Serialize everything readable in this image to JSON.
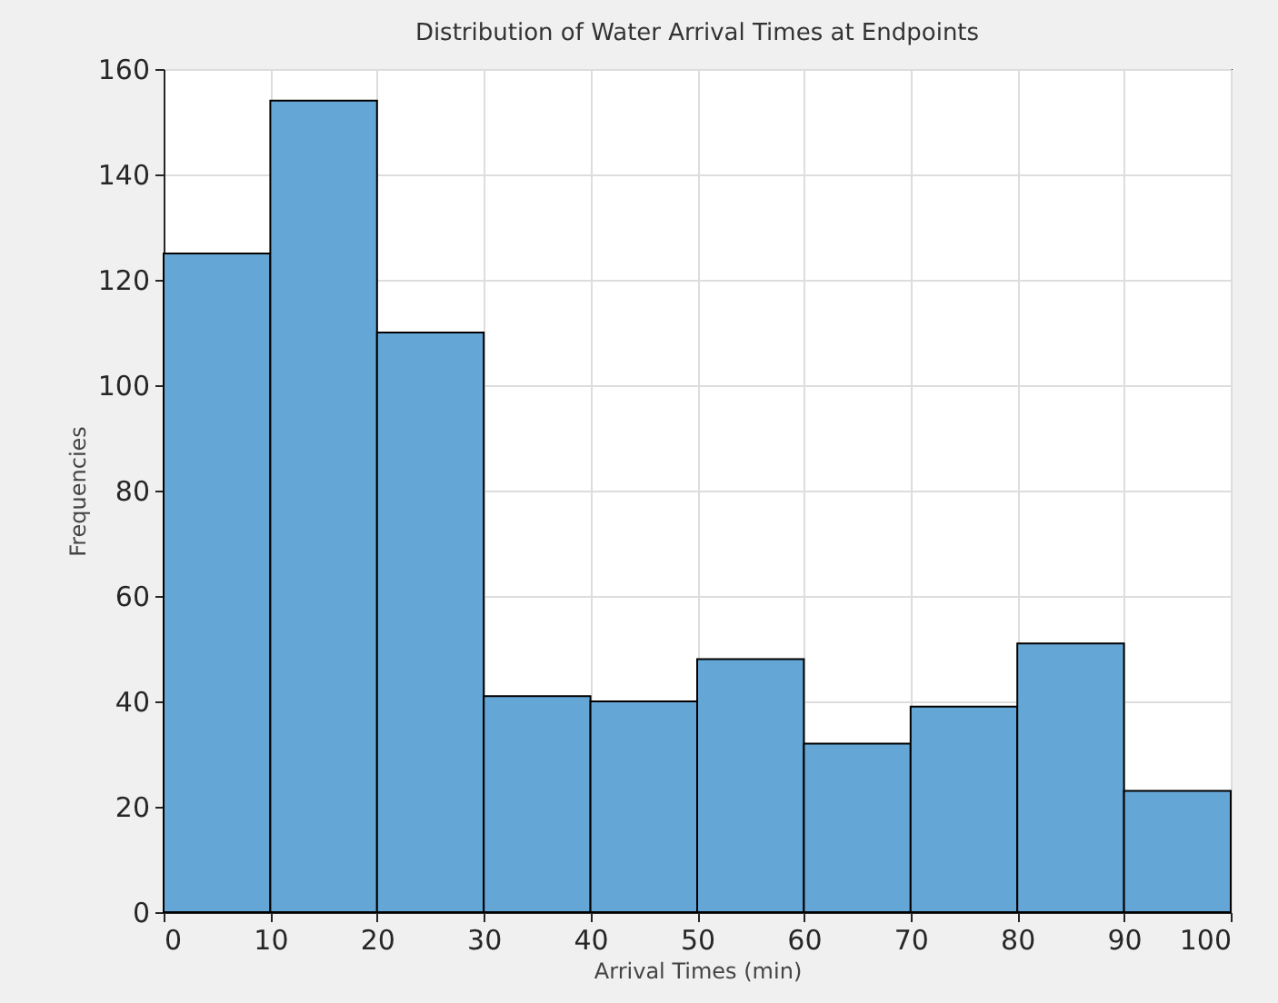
{
  "chart_data": {
    "type": "histogram",
    "title": "Distribution of Water Arrival Times at Endpoints",
    "xlabel": "Arrival Times (min)",
    "ylabel": "Frequencies",
    "bins": [
      0,
      10,
      20,
      30,
      40,
      50,
      60,
      70,
      80,
      90,
      100
    ],
    "values": [
      125,
      154,
      110,
      41,
      40,
      48,
      32,
      39,
      51,
      23
    ],
    "color": "#64a6d6",
    "xlim": [
      0,
      100
    ],
    "xticks": [
      0,
      10,
      20,
      30,
      40,
      50,
      60,
      70,
      80,
      90,
      100
    ],
    "ylim": [
      0,
      160
    ],
    "yticks": [
      0,
      20,
      40,
      60,
      80,
      100,
      120,
      140,
      160
    ],
    "grid": true
  }
}
